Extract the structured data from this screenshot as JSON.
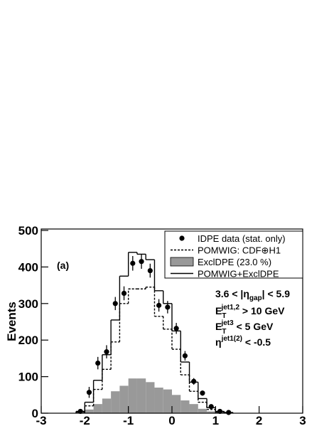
{
  "chart_data": {
    "type": "histogram",
    "y_label": "Events",
    "panel_label": "(a)",
    "cuts": [
      [
        "3.6 < |η",
        "gap",
        "| < 5.9"
      ],
      [
        "E",
        "T",
        "jet1,2",
        " > 10 GeV"
      ],
      [
        "E",
        "T",
        "jet3",
        " < 5 GeV"
      ],
      [
        "η",
        "jet1(2)",
        " < -0.5"
      ]
    ],
    "xlim": [
      -3,
      3
    ],
    "ylim": [
      0,
      500
    ],
    "xticks": [
      -3,
      -2,
      -1,
      0,
      1,
      2,
      3
    ],
    "yticks": [
      0,
      100,
      200,
      300,
      400,
      500
    ],
    "bins": [
      -2.2,
      -2.0,
      -1.8,
      -1.6,
      -1.4,
      -1.2,
      -1.0,
      -0.8,
      -0.6,
      -0.4,
      -0.2,
      0,
      0.2,
      0.4,
      0.6,
      0.8,
      1.0,
      1.2,
      1.4
    ],
    "series": [
      {
        "name": "ExclDPE (23.0 %)",
        "style": "filled",
        "color": "#999999",
        "values": [
          2,
          10,
          25,
          40,
          60,
          75,
          95,
          95,
          85,
          70,
          65,
          50,
          35,
          25,
          12,
          5,
          2,
          1
        ]
      },
      {
        "name": "POMWIG: CDF⊕H1",
        "style": "dashed",
        "color": "#000000",
        "values": [
          3,
          20,
          65,
          120,
          195,
          300,
          340,
          340,
          345,
          265,
          230,
          175,
          105,
          60,
          30,
          10,
          3,
          1
        ]
      },
      {
        "name": "POMWIG+ExclDPE",
        "style": "solid",
        "color": "#000000",
        "values": [
          5,
          30,
          90,
          160,
          255,
          375,
          440,
          435,
          420,
          335,
          300,
          225,
          140,
          85,
          40,
          15,
          5,
          2
        ]
      }
    ],
    "points": {
      "name": "IDPE data (stat. only)",
      "color": "#000000",
      "x": [
        -2.1,
        -1.9,
        -1.7,
        -1.5,
        -1.3,
        -1.1,
        -0.9,
        -0.7,
        -0.5,
        -0.3,
        -0.1,
        0.1,
        0.3,
        0.5,
        0.7,
        0.9,
        1.1,
        1.3
      ],
      "values": [
        5,
        57,
        137,
        168,
        300,
        328,
        410,
        415,
        390,
        295,
        290,
        232,
        157,
        87,
        55,
        18,
        5,
        2
      ],
      "errors": [
        3,
        15,
        17,
        18,
        18,
        19,
        20,
        20,
        19,
        17,
        17,
        15,
        13,
        9,
        7,
        4,
        3,
        2
      ]
    }
  }
}
